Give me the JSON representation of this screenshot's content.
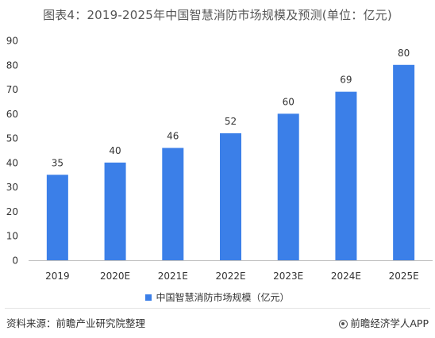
{
  "chart_data": {
    "type": "bar",
    "title": "图表4：2019-2025年中国智慧消防市场规模及预测(单位：亿元)",
    "categories": [
      "2019",
      "2020E",
      "2021E",
      "2022E",
      "2023E",
      "2024E",
      "2025E"
    ],
    "series": [
      {
        "name": "中国智慧消防市场规模（亿元）",
        "values": [
          35,
          40,
          46,
          52,
          60,
          69,
          80
        ]
      }
    ],
    "data_labels": [
      "35",
      "40",
      "46",
      "52",
      "60",
      "69",
      "80"
    ],
    "ylim": [
      0,
      90
    ],
    "yticks": [
      0,
      10,
      20,
      30,
      40,
      50,
      60,
      70,
      80,
      90
    ],
    "xlabel": "",
    "ylabel": "",
    "grid": false,
    "legend_position": "bottom",
    "bar_color": "#3b7fe8"
  },
  "footer": {
    "source": "资料来源：前瞻产业研究院整理",
    "brand": "前瞻经济学人APP",
    "brand_icon": "qianzhan-logo-icon"
  }
}
